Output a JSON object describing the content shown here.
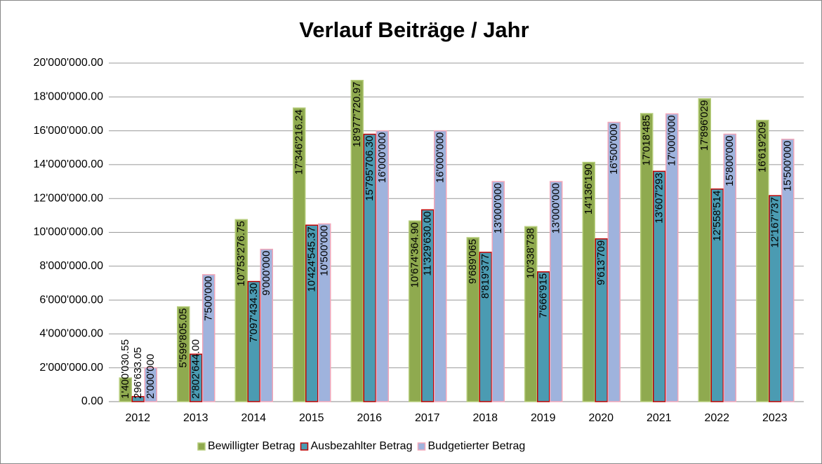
{
  "chart_data": {
    "type": "bar",
    "title": "Verlauf Beiträge / Jahr",
    "categories": [
      "2012",
      "2013",
      "2014",
      "2015",
      "2016",
      "2017",
      "2018",
      "2019",
      "2020",
      "2021",
      "2022",
      "2023"
    ],
    "series": [
      {
        "name": "Bewilligter Betrag",
        "color": "#8faa4f",
        "stroke": "#b5cc7a",
        "values": [
          1400030.55,
          5599805.05,
          10753276.75,
          17346216.24,
          18977720.97,
          10674364.9,
          9689065,
          10338738,
          14136190,
          17018485,
          17896029,
          16619209
        ],
        "value_labels": [
          "1'400'030.55",
          "5'599'805.05",
          "10'753'276.75",
          "17'346'216.24",
          "18'977'720.97",
          "10'674'364.90",
          "9'689'065",
          "10'338'738",
          "14'136'190",
          "17'018'485",
          "17'896'029",
          "16'619'209"
        ]
      },
      {
        "name": "Ausbezahlter Betrag",
        "color": "#4b9bb2",
        "stroke": "#c00000",
        "values": [
          296633.05,
          2802644.0,
          7097434.3,
          10424545.37,
          15795706.3,
          11329630.0,
          8819377,
          7666915,
          9613709,
          13607293,
          12558514,
          12167737
        ],
        "value_labels": [
          "296'633.05",
          "2'802'644.00",
          "7'097'434.30",
          "10'424'545.37",
          "15'795'706.30",
          "11'329'630.00",
          "8'819'377",
          "7'666'915",
          "9'613'709",
          "13'607'293",
          "12'558'514",
          "12'167'737"
        ]
      },
      {
        "name": "Budgetierter Betrag",
        "color": "#9fb3dd",
        "stroke": "#f2a6b8",
        "values": [
          2000000,
          7500000,
          9000000,
          10500000,
          16000000,
          16000000,
          13000000,
          13000000,
          16500000,
          17000000,
          15800000,
          15500000
        ],
        "value_labels": [
          "2'000'000",
          "7'500'000",
          "9'000'000",
          "10'500'000",
          "16'000'000",
          "16'000'000",
          "13'000'000",
          "13'000'000",
          "16'500'000",
          "17'000'000",
          "15'800'000",
          "15'500'000"
        ]
      }
    ],
    "ylim": [
      0,
      20000000
    ],
    "yticks": [
      {
        "value": 0,
        "label": "0.00"
      },
      {
        "value": 2000000,
        "label": "2'000'000.00"
      },
      {
        "value": 4000000,
        "label": "4'000'000.00"
      },
      {
        "value": 6000000,
        "label": "6'000'000.00"
      },
      {
        "value": 8000000,
        "label": "8'000'000.00"
      },
      {
        "value": 10000000,
        "label": "10'000'000.00"
      },
      {
        "value": 12000000,
        "label": "12'000'000.00"
      },
      {
        "value": 14000000,
        "label": "14'000'000.00"
      },
      {
        "value": 16000000,
        "label": "16'000'000.00"
      },
      {
        "value": 18000000,
        "label": "18'000'000.00"
      },
      {
        "value": 20000000,
        "label": "20'000'000.00"
      }
    ],
    "grid": true,
    "legend": "bottom"
  }
}
